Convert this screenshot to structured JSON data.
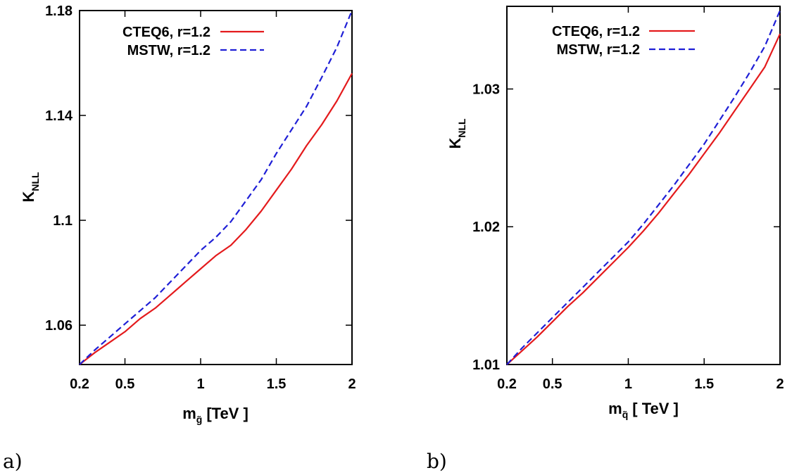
{
  "chart_data": [
    {
      "type": "line",
      "panel_label": "a)",
      "xlabel": {
        "main": "m",
        "sub": "g̃",
        "unit": "[TeV ]"
      },
      "ylabel": {
        "main": "K",
        "sub": "NLL"
      },
      "xlim": [
        0.2,
        2.0
      ],
      "ylim": [
        1.045,
        1.18
      ],
      "xticks": [
        {
          "value": 0.2,
          "label": "0.2"
        },
        {
          "value": 0.5,
          "label": "0.5"
        },
        {
          "value": 1.0,
          "label": "1"
        },
        {
          "value": 1.5,
          "label": "1.5"
        },
        {
          "value": 2.0,
          "label": "2"
        }
      ],
      "yticks": [
        {
          "value": 1.06,
          "label": "1.06"
        },
        {
          "value": 1.1,
          "label": "1.1"
        },
        {
          "value": 1.14,
          "label": "1.14"
        },
        {
          "value": 1.18,
          "label": "1.18"
        }
      ],
      "legend_position": "top-right",
      "series": [
        {
          "name": "CTEQ6, r=1.2",
          "color": "#e41a1c",
          "dash": "solid",
          "x": [
            0.2,
            0.3,
            0.4,
            0.5,
            0.6,
            0.7,
            0.8,
            0.9,
            1.0,
            1.1,
            1.2,
            1.3,
            1.4,
            1.5,
            1.6,
            1.7,
            1.8,
            1.9,
            2.0
          ],
          "y": [
            1.045,
            1.0495,
            1.0535,
            1.0575,
            1.0625,
            1.0665,
            1.0715,
            1.0765,
            1.0815,
            1.0865,
            1.0905,
            1.0965,
            1.1035,
            1.1115,
            1.1195,
            1.1285,
            1.1365,
            1.1455,
            1.156
          ]
        },
        {
          "name": "MSTW, r=1.2",
          "color": "#1f1fd6",
          "dash": "dashed",
          "x": [
            0.2,
            0.3,
            0.4,
            0.5,
            0.6,
            0.7,
            0.8,
            0.9,
            1.0,
            1.1,
            1.2,
            1.3,
            1.4,
            1.5,
            1.6,
            1.7,
            1.8,
            1.9,
            2.0
          ],
          "y": [
            1.045,
            1.0505,
            1.0555,
            1.0605,
            1.0655,
            1.0705,
            1.0765,
            1.0825,
            1.0885,
            1.0935,
            1.0995,
            1.1075,
            1.1155,
            1.1255,
            1.1345,
            1.1435,
            1.1545,
            1.166,
            1.18
          ]
        }
      ]
    },
    {
      "type": "line",
      "panel_label": "b)",
      "xlabel": {
        "main": "m",
        "sub": "q̃",
        "unit": "[ TeV ]"
      },
      "ylabel": {
        "main": "K",
        "sub": "NLL"
      },
      "xlim": [
        0.2,
        2.0
      ],
      "ylim": [
        1.01,
        1.036
      ],
      "xticks": [
        {
          "value": 0.2,
          "label": "0.2"
        },
        {
          "value": 0.5,
          "label": "0.5"
        },
        {
          "value": 1.0,
          "label": "1"
        },
        {
          "value": 1.5,
          "label": "1.5"
        },
        {
          "value": 2.0,
          "label": "2"
        }
      ],
      "yticks": [
        {
          "value": 1.01,
          "label": "1.01"
        },
        {
          "value": 1.02,
          "label": "1.02"
        },
        {
          "value": 1.03,
          "label": "1.03"
        }
      ],
      "legend_position": "top-right",
      "series": [
        {
          "name": "CTEQ6, r=1.2",
          "color": "#e41a1c",
          "dash": "solid",
          "x": [
            0.2,
            0.3,
            0.4,
            0.5,
            0.6,
            0.7,
            0.8,
            0.9,
            1.0,
            1.1,
            1.2,
            1.3,
            1.4,
            1.5,
            1.6,
            1.7,
            1.8,
            1.9,
            2.0
          ],
          "y": [
            1.01,
            1.011,
            1.012,
            1.0131,
            1.0142,
            1.0152,
            1.0163,
            1.0174,
            1.0185,
            1.0197,
            1.021,
            1.0224,
            1.0238,
            1.0253,
            1.0268,
            1.0284,
            1.03,
            1.0316,
            1.034
          ]
        },
        {
          "name": "MSTW, r=1.2",
          "color": "#1f1fd6",
          "dash": "dashed",
          "x": [
            0.2,
            0.3,
            0.4,
            0.5,
            0.6,
            0.7,
            0.8,
            0.9,
            1.0,
            1.1,
            1.2,
            1.3,
            1.4,
            1.5,
            1.6,
            1.7,
            1.8,
            1.9,
            2.0
          ],
          "y": [
            1.01,
            1.0112,
            1.0123,
            1.0134,
            1.0145,
            1.0156,
            1.0167,
            1.0178,
            1.0189,
            1.0202,
            1.0216,
            1.023,
            1.0245,
            1.026,
            1.0277,
            1.0294,
            1.0312,
            1.0331,
            1.0357
          ]
        }
      ]
    }
  ]
}
